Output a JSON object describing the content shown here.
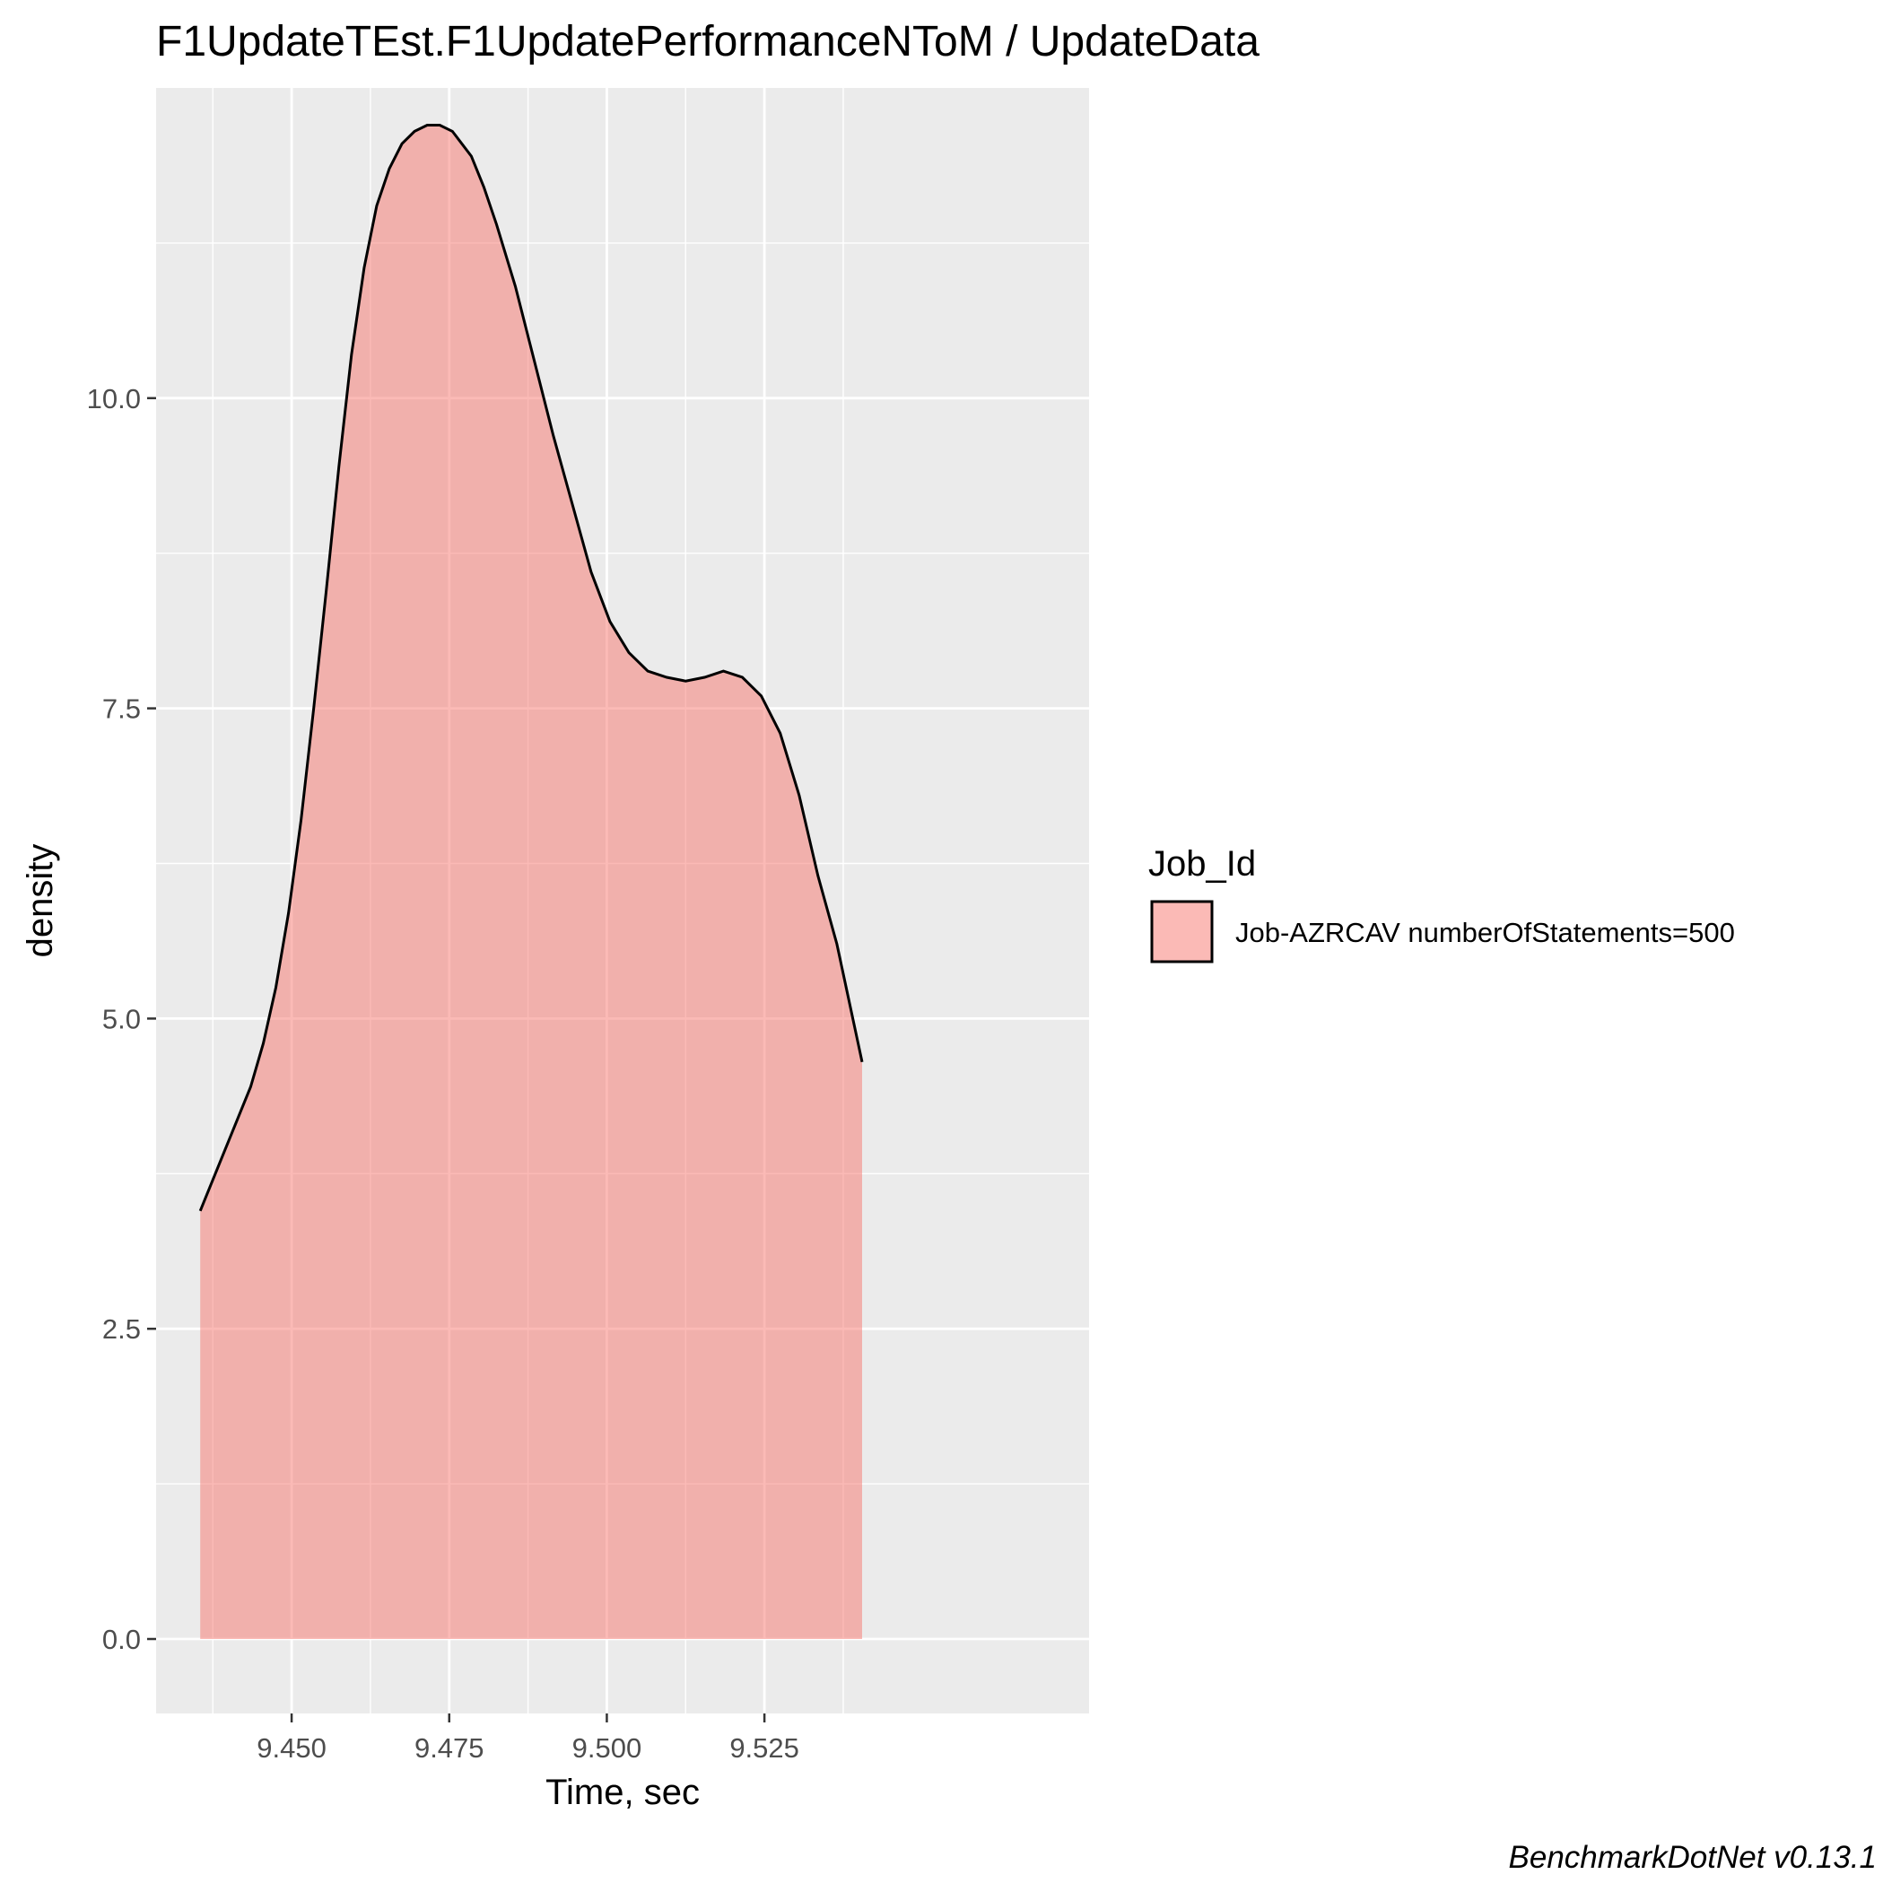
{
  "chart_data": {
    "type": "area",
    "title": "F1UpdateTEst.F1UpdatePerformanceNToM / UpdateData",
    "xlabel": "Time, sec",
    "ylabel": "density",
    "xlim": [
      9.4285,
      9.5765
    ],
    "ylim": [
      -0.6,
      12.5
    ],
    "x_ticks": [
      9.45,
      9.475,
      9.5,
      9.525
    ],
    "x_tick_labels": [
      "9.450",
      "9.475",
      "9.500",
      "9.525"
    ],
    "y_ticks": [
      0,
      2.5,
      5,
      7.5,
      10
    ],
    "y_tick_labels": [
      "0.0",
      "2.5",
      "5.0",
      "7.5",
      "10.0"
    ],
    "grid": true,
    "legend": {
      "title": "Job_Id",
      "placement": "right",
      "entries": [
        "Job-AZRCAV numberOfStatements=500"
      ]
    },
    "colors": {
      "fill": "#f8766d",
      "outline": "#000000",
      "panel": "#ebebeb",
      "grid": "#ffffff"
    },
    "series": [
      {
        "name": "Job-AZRCAV numberOfStatements=500",
        "x": [
          9.4355,
          9.4395,
          9.4435,
          9.4455,
          9.4475,
          9.4495,
          9.4515,
          9.4535,
          9.4555,
          9.4575,
          9.4595,
          9.4615,
          9.4635,
          9.4655,
          9.4675,
          9.4695,
          9.4715,
          9.4735,
          9.4755,
          9.4785,
          9.4805,
          9.4825,
          9.4855,
          9.4885,
          9.4915,
          9.4945,
          9.4975,
          9.5005,
          9.5035,
          9.5065,
          9.5095,
          9.5125,
          9.5155,
          9.5185,
          9.5215,
          9.5245,
          9.5275,
          9.5305,
          9.5335,
          9.5365,
          9.5405
        ],
        "y": [
          3.45,
          3.95,
          4.45,
          4.8,
          5.25,
          5.85,
          6.6,
          7.5,
          8.45,
          9.45,
          10.35,
          11.05,
          11.55,
          11.85,
          12.05,
          12.15,
          12.2,
          12.2,
          12.15,
          11.95,
          11.7,
          11.4,
          10.9,
          10.3,
          9.7,
          9.15,
          8.6,
          8.2,
          7.95,
          7.8,
          7.75,
          7.72,
          7.75,
          7.8,
          7.75,
          7.6,
          7.3,
          6.8,
          6.15,
          5.6,
          4.65
        ]
      }
    ],
    "caption": "BenchmarkDotNet v0.13.1"
  }
}
